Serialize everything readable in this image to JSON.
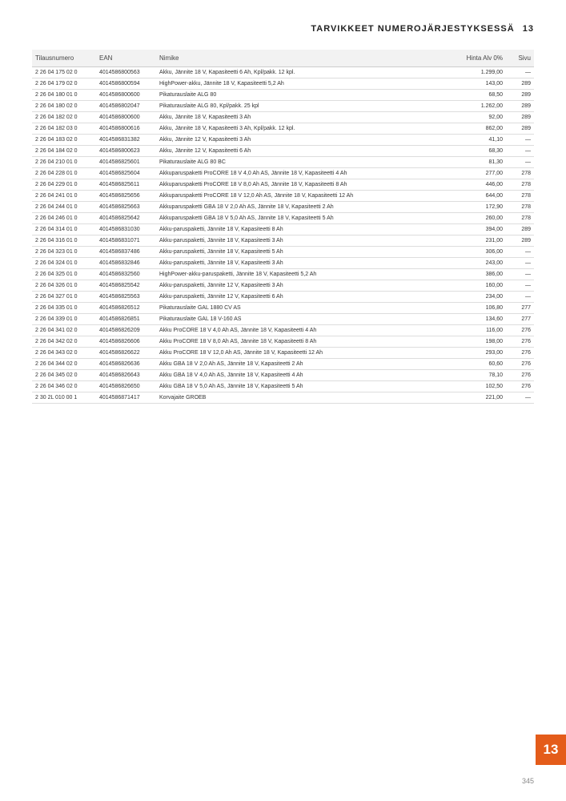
{
  "header": {
    "title": "TARVIKKEET NUMEROJÄRJESTYKSESSÄ",
    "section_num": "13"
  },
  "table": {
    "columns": {
      "order": "Tilausnumero",
      "ean": "EAN",
      "name": "Nimike",
      "price": "Hinta Alv 0%",
      "page": "Sivu"
    },
    "rows": [
      {
        "order": "2 26 04 175 02 0",
        "ean": "4014586800563",
        "name": "Akku, Jännite 18 V, Kapasiteetti 6 Ah, Kpl/pakk. 12 kpl.",
        "price": "1.299,00",
        "page": "—"
      },
      {
        "order": "2 26 04 179 02 0",
        "ean": "4014586800594",
        "name": "HighPower-akku, Jännite 18 V, Kapasiteetti 5,2 Ah",
        "price": "143,00",
        "page": "289"
      },
      {
        "order": "2 26 04 180 01 0",
        "ean": "4014586800600",
        "name": "Pikaturauslaite ALG 80",
        "price": "68,50",
        "page": "289"
      },
      {
        "order": "2 26 04 180 02 0",
        "ean": "4014586802047",
        "name": "Pikaturauslaite ALG 80, Kpl/pakk. 25 kpl",
        "price": "1.262,00",
        "page": "289"
      },
      {
        "order": "2 26 04 182 02 0",
        "ean": "4014586800600",
        "name": "Akku, Jännite 18 V, Kapasiteetti 3 Ah",
        "price": "92,00",
        "page": "289"
      },
      {
        "order": "2 26 04 182 03 0",
        "ean": "4014586800616",
        "name": "Akku, Jännite 18 V, Kapasiteetti 3 Ah, Kpl/pakk. 12 kpl.",
        "price": "862,00",
        "page": "289"
      },
      {
        "order": "2 26 04 183 02 0",
        "ean": "4014586831382",
        "name": "Akku, Jännite 12 V, Kapasiteetti 3 Ah",
        "price": "41,10",
        "page": "—"
      },
      {
        "order": "2 26 04 184 02 0",
        "ean": "4014586800623",
        "name": "Akku, Jännite 12 V, Kapasiteetti 6 Ah",
        "price": "68,30",
        "page": "—"
      },
      {
        "order": "2 26 04 210 01 0",
        "ean": "4014586825601",
        "name": "Pikaturauslaite ALG 80 BC",
        "price": "81,30",
        "page": "—"
      },
      {
        "order": "2 26 04 228 01 0",
        "ean": "4014586825604",
        "name": "Akkuparuspaketti ProCORE 18 V 4,0 Ah AS, Jännite 18 V, Kapasiteetti 4 Ah",
        "price": "277,00",
        "page": "278"
      },
      {
        "order": "2 26 04 229 01 0",
        "ean": "4014586825611",
        "name": "Akkuparuspaketti ProCORE 18 V 8,0 Ah AS, Jännite 18 V, Kapasiteetti 8 Ah",
        "price": "446,00",
        "page": "278"
      },
      {
        "order": "2 26 04 241 01 0",
        "ean": "4014586825656",
        "name": "Akkuparuspaketti ProCORE 18 V 12,0 Ah AS, Jännite 18 V, Kapasiteetti 12 Ah",
        "price": "644,00",
        "page": "278"
      },
      {
        "order": "2 26 04 244 01 0",
        "ean": "4014586825663",
        "name": "Akkuparuspaketti GBA 18 V 2,0 Ah AS, Jännite 18 V, Kapasiteetti 2 Ah",
        "price": "172,90",
        "page": "278"
      },
      {
        "order": "2 26 04 246 01 0",
        "ean": "4014586825642",
        "name": "Akkuparuspaketti GBA 18 V 5,0 Ah AS, Jännite 18 V, Kapasiteetti 5 Ah",
        "price": "260,00",
        "page": "278"
      },
      {
        "order": "2 26 04 314 01 0",
        "ean": "4014586831030",
        "name": "Akku-paruspaketti, Jännite 18 V, Kapasiteetti 8 Ah",
        "price": "394,00",
        "page": "289"
      },
      {
        "order": "2 26 04 316 01 0",
        "ean": "4014586831071",
        "name": "Akku-paruspaketti, Jännite 18 V, Kapasiteetti 3 Ah",
        "price": "231,00",
        "page": "289"
      },
      {
        "order": "2 26 04 323 01 0",
        "ean": "4014586837486",
        "name": "Akku-paruspaketti, Jännite 18 V, Kapasiteetti 5 Ah",
        "price": "306,00",
        "page": "—"
      },
      {
        "order": "2 26 04 324 01 0",
        "ean": "4014586832846",
        "name": "Akku-paruspaketti, Jännite 18 V, Kapasiteetti 3 Ah",
        "price": "243,00",
        "page": "—"
      },
      {
        "order": "2 26 04 325 01 0",
        "ean": "4014586832560",
        "name": "HighPower-akku-paruspaketti, Jännite 18 V, Kapasiteetti 5,2 Ah",
        "price": "386,00",
        "page": "—"
      },
      {
        "order": "2 26 04 326 01 0",
        "ean": "4014586825542",
        "name": "Akku-paruspaketti, Jännite 12 V, Kapasiteetti 3 Ah",
        "price": "160,00",
        "page": "—"
      },
      {
        "order": "2 26 04 327 01 0",
        "ean": "4014586825563",
        "name": "Akku-paruspaketti, Jännite 12 V, Kapasiteetti 6 Ah",
        "price": "234,00",
        "page": "—"
      },
      {
        "order": "2 26 04 335 01 0",
        "ean": "4014586826512",
        "name": "Pikaturauslaite GAL 1880 CV AS",
        "price": "106,80",
        "page": "277"
      },
      {
        "order": "2 26 04 339 01 0",
        "ean": "4014586826851",
        "name": "Pikaturauslaite GAL 18 V-160 AS",
        "price": "134,60",
        "page": "277"
      },
      {
        "order": "2 26 04 341 02 0",
        "ean": "4014586826209",
        "name": "Akku ProCORE 18 V 4,0 Ah AS, Jännite 18 V, Kapasiteetti 4 Ah",
        "price": "116,00",
        "page": "276"
      },
      {
        "order": "2 26 04 342 02 0",
        "ean": "4014586826606",
        "name": "Akku ProCORE 18 V 8,0 Ah AS, Jännite 18 V, Kapasiteetti 8 Ah",
        "price": "198,00",
        "page": "276"
      },
      {
        "order": "2 26 04 343 02 0",
        "ean": "4014586826622",
        "name": "Akku ProCORE 18 V 12,0 Ah AS, Jännite 18 V, Kapasiteetti 12 Ah",
        "price": "293,00",
        "page": "276"
      },
      {
        "order": "2 26 04 344 02 0",
        "ean": "4014586826636",
        "name": "Akku GBA 18 V 2,0 Ah AS, Jännite 18 V, Kapasiteetti 2 Ah",
        "price": "60,60",
        "page": "276"
      },
      {
        "order": "2 26 04 345 02 0",
        "ean": "4014586826643",
        "name": "Akku GBA 18 V 4,0 Ah AS, Jännite 18 V, Kapasiteetti 4 Ah",
        "price": "78,10",
        "page": "276"
      },
      {
        "order": "2 26 04 346 02 0",
        "ean": "4014586826650",
        "name": "Akku GBA 18 V 5,0 Ah AS, Jännite 18 V, Kapasiteetti 5 Ah",
        "price": "102,50",
        "page": "276"
      },
      {
        "order": "2 30 2L 010 00 1",
        "ean": "4014586871417",
        "name": "Korvajaite GROEB",
        "price": "221,00",
        "page": "—"
      }
    ]
  },
  "side_tab": "13",
  "page_number": "345",
  "style": {
    "accent": "#e45c1a",
    "header_bg": "#f2f2f2",
    "border": "#dddddd",
    "text": "#333333",
    "muted": "#888888"
  }
}
